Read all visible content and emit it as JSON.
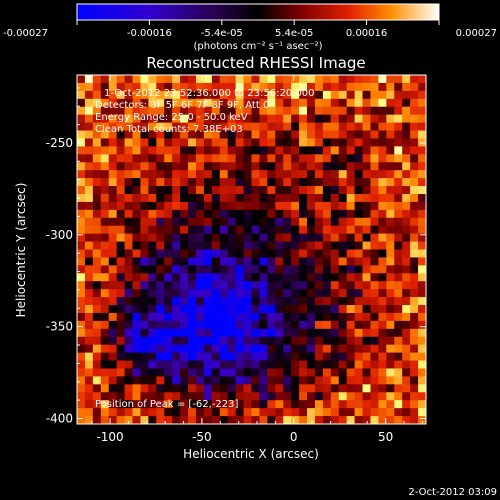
{
  "colorbar": {
    "tick_labels": [
      "-0.00027",
      "-0.00016",
      "-5.4e-05",
      "5.4e-05",
      "0.00016",
      "0.00027"
    ],
    "units": "(photons cm⁻² s⁻¹ asec⁻²)",
    "range": [
      -0.00027,
      0.00027
    ]
  },
  "title": "Reconstructed RHESSI Image",
  "annotations": {
    "time": "1-Oct-2012 23:52:36.000 to 23:56:20.000",
    "detectors": "Detectors: 3F 5F 6F 7F 8F 9F, Att 0",
    "energy": "Energy Range: 25.0 - 50.0 keV",
    "clean": "Clean    Total counts: 7.38E+03",
    "peak": "Position of Peak = [-62,-223]"
  },
  "timestamp": "2-Oct-2012 03:09",
  "chart_data": {
    "type": "heatmap",
    "title": "Reconstructed RHESSI Image",
    "xlabel": "Heliocentric X (arcsec)",
    "ylabel": "Heliocentric Y (arcsec)",
    "xlim": [
      -118,
      72
    ],
    "ylim": [
      -403,
      -213
    ],
    "x_ticks": [
      -100,
      -50,
      0,
      50
    ],
    "y_ticks": [
      -250,
      -300,
      -350,
      -400
    ],
    "color_scale": [
      "#0000ff",
      "#3a00c0",
      "#2a0040",
      "#000000",
      "#7a0000",
      "#e02000",
      "#ff8000",
      "#ffff80",
      "#ffffff"
    ],
    "peak": [
      -62,
      -223
    ]
  }
}
